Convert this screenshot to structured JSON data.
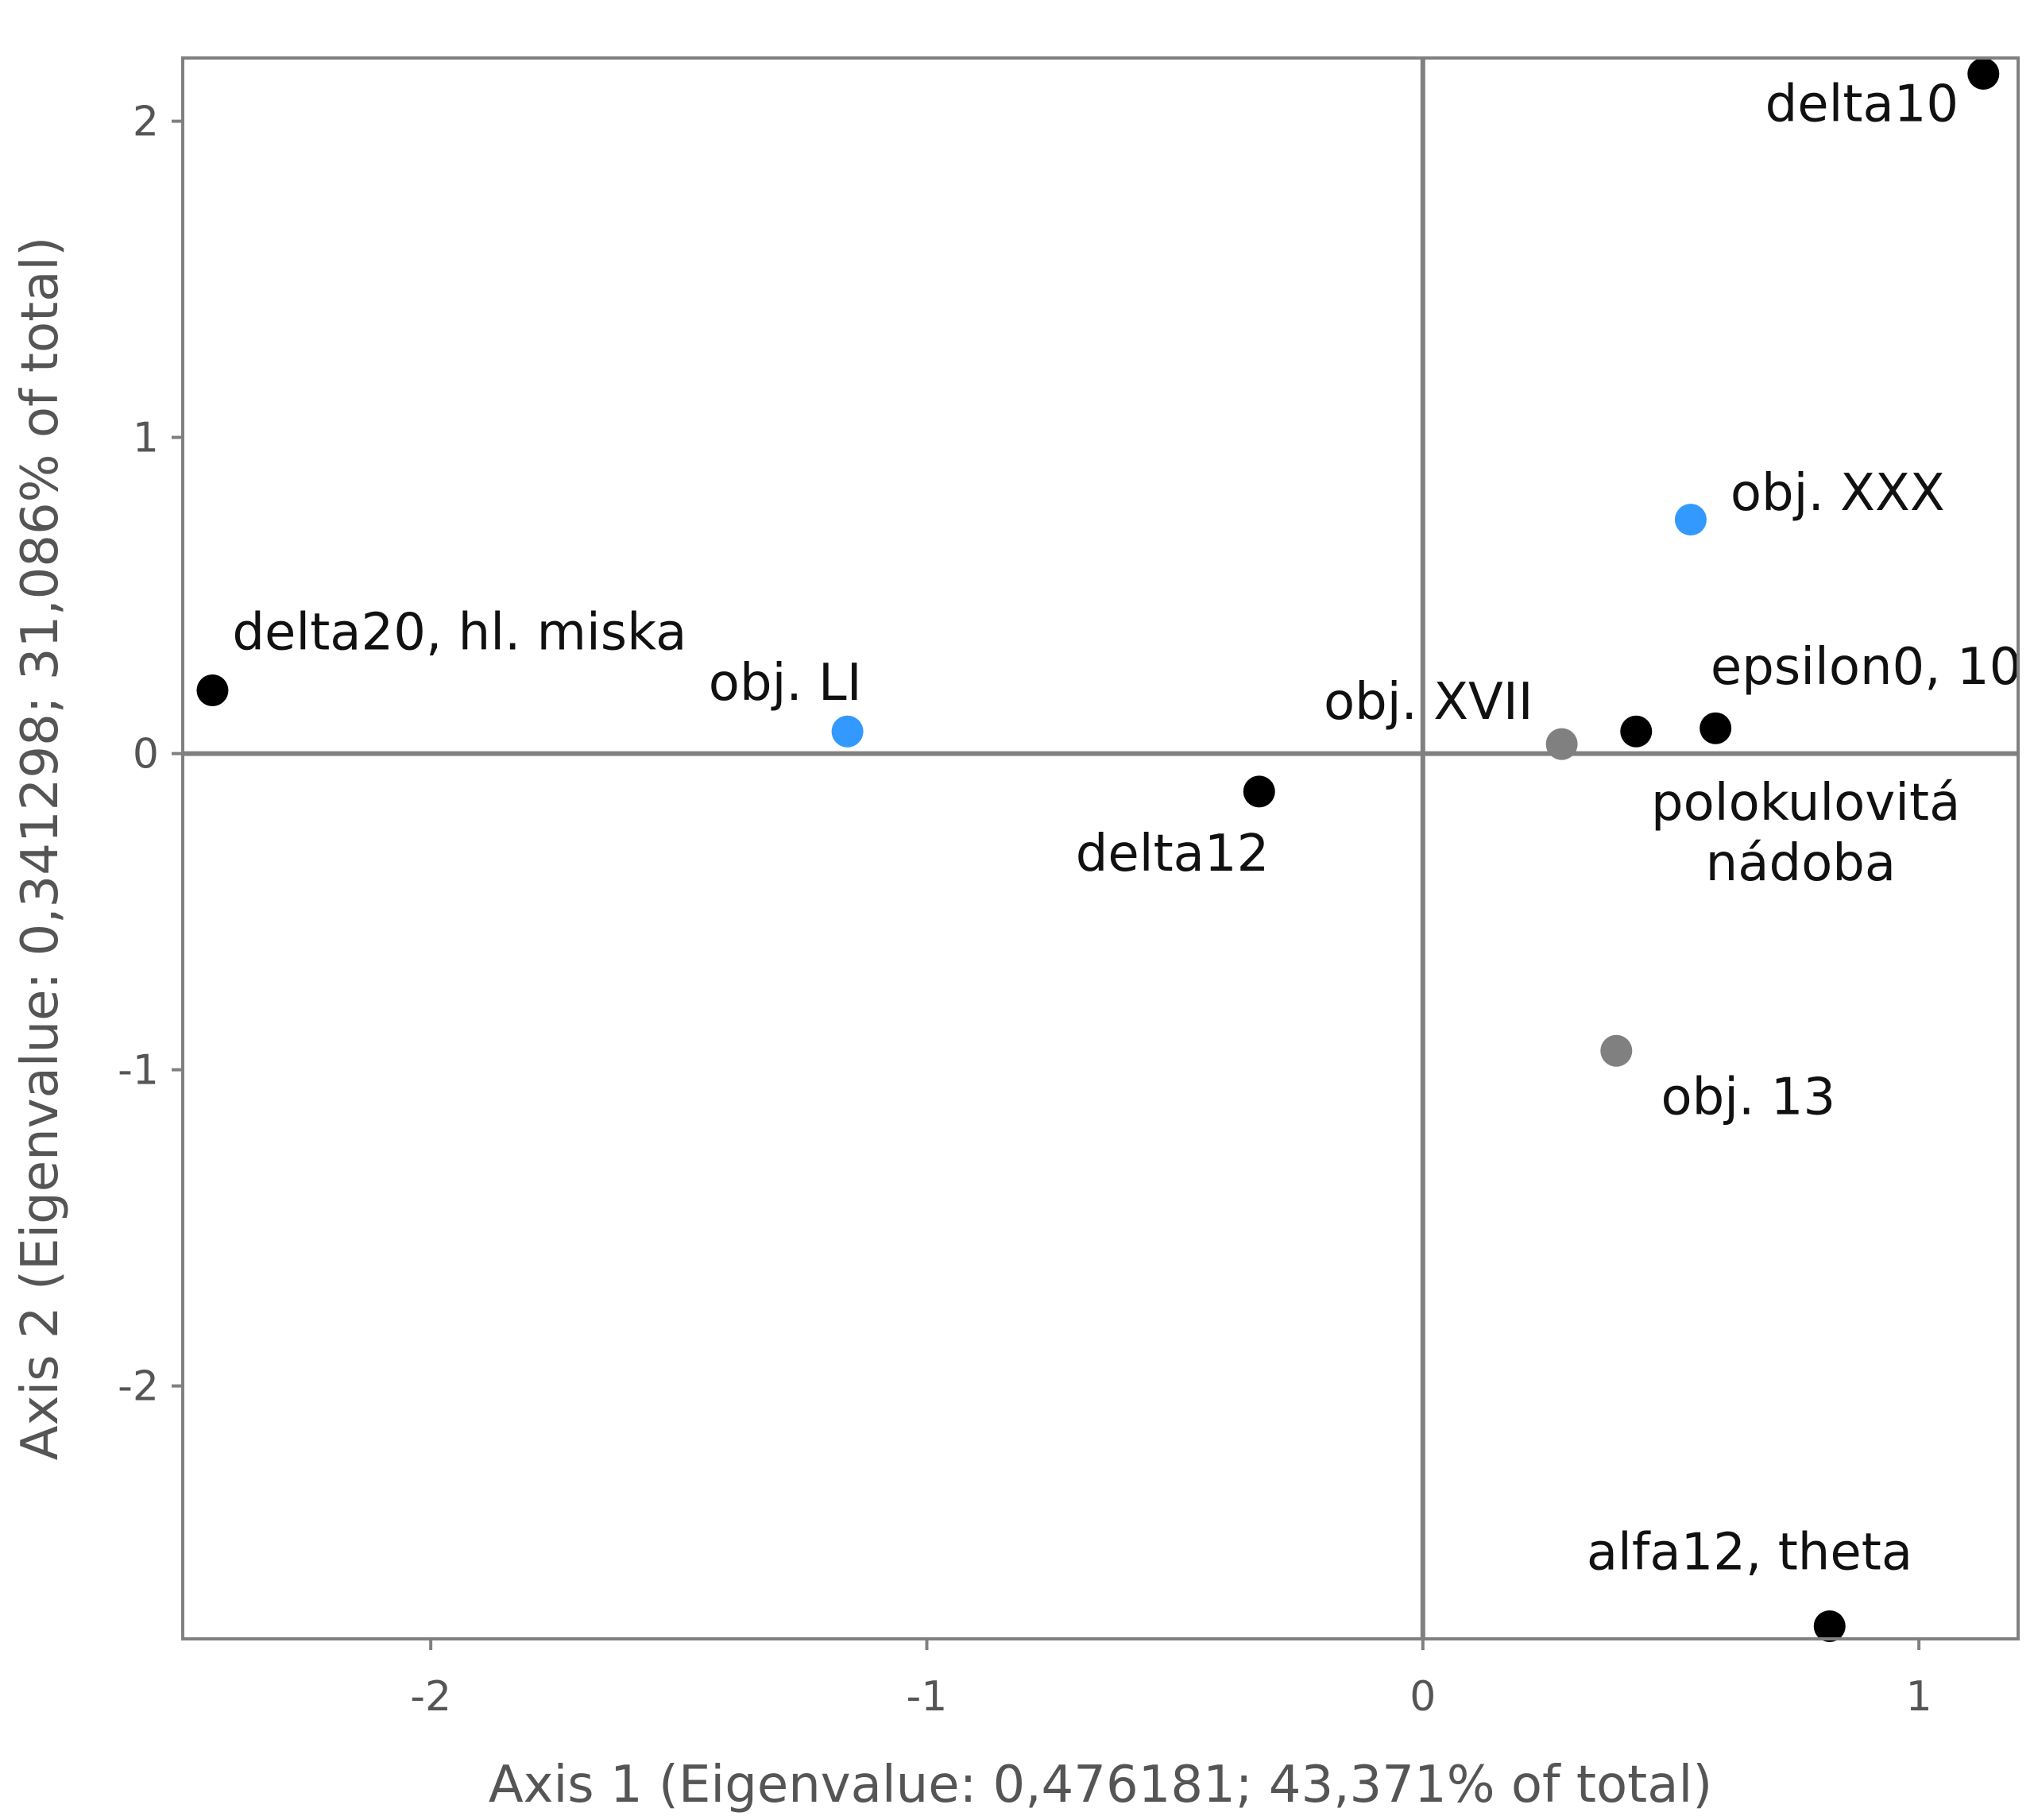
{
  "chart_data": {
    "type": "scatter",
    "title": "",
    "xlabel": "Axis 1 (Eigenvalue: 0,476181; 43,371% of total)",
    "ylabel": "Axis 2  (Eigenvalue: 0,341298; 31,086% of total)",
    "xlim": [
      -2.5,
      1.2
    ],
    "ylim": [
      -2.8,
      2.2
    ],
    "x_ticks": [
      {
        "value": -2,
        "label": "-2"
      },
      {
        "value": -1,
        "label": "-1"
      },
      {
        "value": 0,
        "label": "0"
      },
      {
        "value": 1,
        "label": "1"
      }
    ],
    "y_ticks": [
      {
        "value": 2,
        "label": "2"
      },
      {
        "value": 1,
        "label": "1"
      },
      {
        "value": 0,
        "label": "0"
      },
      {
        "value": -1,
        "label": "-1"
      },
      {
        "value": -2,
        "label": "-2"
      }
    ],
    "grid": false,
    "zero_lines": true,
    "colors": {
      "black": "#000000",
      "blue": "#3399ff",
      "gray": "#808080",
      "frame": "#808080"
    },
    "points": [
      {
        "x": -2.44,
        "y": 0.2,
        "color": "black"
      },
      {
        "x": -1.16,
        "y": 0.07,
        "color": "blue"
      },
      {
        "x": -0.33,
        "y": -0.12,
        "color": "black"
      },
      {
        "x": 0.28,
        "y": 0.03,
        "color": "gray"
      },
      {
        "x": 0.43,
        "y": 0.07,
        "color": "black"
      },
      {
        "x": 0.59,
        "y": 0.08,
        "color": "black"
      },
      {
        "x": 0.54,
        "y": 0.74,
        "color": "blue"
      },
      {
        "x": 1.13,
        "y": 2.15,
        "color": "black"
      },
      {
        "x": 0.39,
        "y": -0.94,
        "color": "gray"
      },
      {
        "x": 0.82,
        "y": -2.76,
        "color": "black"
      }
    ],
    "labels": [
      {
        "text": "delta20, hl. miska",
        "x": -2.4,
        "y": 0.33
      },
      {
        "text": "obj. LI",
        "x": -1.44,
        "y": 0.17
      },
      {
        "text": "delta12",
        "x": -0.7,
        "y": -0.37
      },
      {
        "text": "obj. XVII",
        "x": -0.2,
        "y": 0.11
      },
      {
        "text": "epsilon0, 10",
        "x": 0.58,
        "y": 0.22
      },
      {
        "text": "polokulovitá",
        "x": 0.46,
        "y": -0.21
      },
      {
        "text": "nádoba",
        "x": 0.57,
        "y": -0.4
      },
      {
        "text": "obj. XXX",
        "x": 0.62,
        "y": 0.77
      },
      {
        "text": "delta10",
        "x": 0.69,
        "y": 2.0
      },
      {
        "text": "obj. 13",
        "x": 0.48,
        "y": -1.14
      },
      {
        "text": "alfa12, theta",
        "x": 0.33,
        "y": -2.58
      }
    ]
  }
}
